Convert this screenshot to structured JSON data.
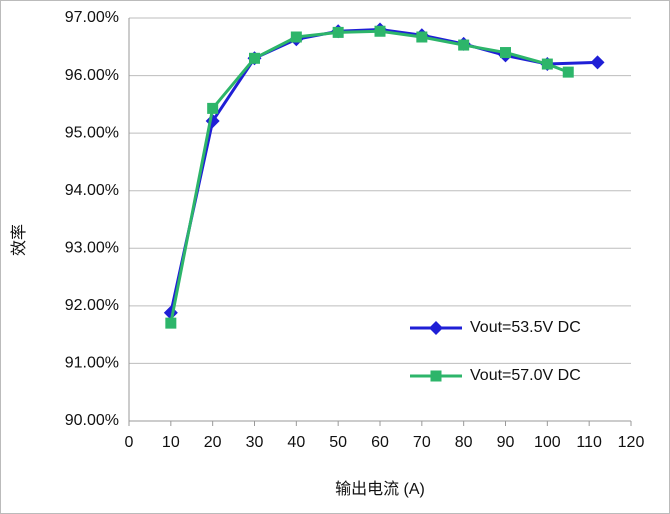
{
  "chart_data": {
    "type": "line",
    "xlabel": "输出电流 (A)",
    "ylabel": "效率",
    "xlim": [
      0,
      120
    ],
    "xticks": [
      0,
      10,
      20,
      30,
      40,
      50,
      60,
      70,
      80,
      90,
      100,
      110,
      120
    ],
    "ylim": [
      90,
      97
    ],
    "yticks": [
      {
        "value": 90,
        "label": "90.00%"
      },
      {
        "value": 91,
        "label": "91.00%"
      },
      {
        "value": 92,
        "label": "92.00%"
      },
      {
        "value": 93,
        "label": "93.00%"
      },
      {
        "value": 94,
        "label": "94.00%"
      },
      {
        "value": 95,
        "label": "95.00%"
      },
      {
        "value": 96,
        "label": "96.00%"
      },
      {
        "value": 97,
        "label": "97.00%"
      }
    ],
    "grid": true,
    "legend": "lower right",
    "series": [
      {
        "name": "Vout=53.5V DC",
        "color": "#1f1fd6",
        "marker": "diamond",
        "x": [
          10,
          20,
          30,
          40,
          50,
          60,
          70,
          80,
          90,
          100,
          112
        ],
        "values": [
          91.88,
          95.21,
          96.3,
          96.63,
          96.77,
          96.8,
          96.7,
          96.55,
          96.35,
          96.2,
          96.23
        ]
      },
      {
        "name": "Vout=57.0V DC",
        "color": "#2db56a",
        "marker": "square",
        "x": [
          10,
          20,
          30,
          40,
          50,
          60,
          70,
          80,
          90,
          100,
          105
        ],
        "values": [
          91.7,
          95.43,
          96.3,
          96.67,
          96.75,
          96.77,
          96.67,
          96.53,
          96.4,
          96.2,
          96.06
        ]
      }
    ]
  }
}
